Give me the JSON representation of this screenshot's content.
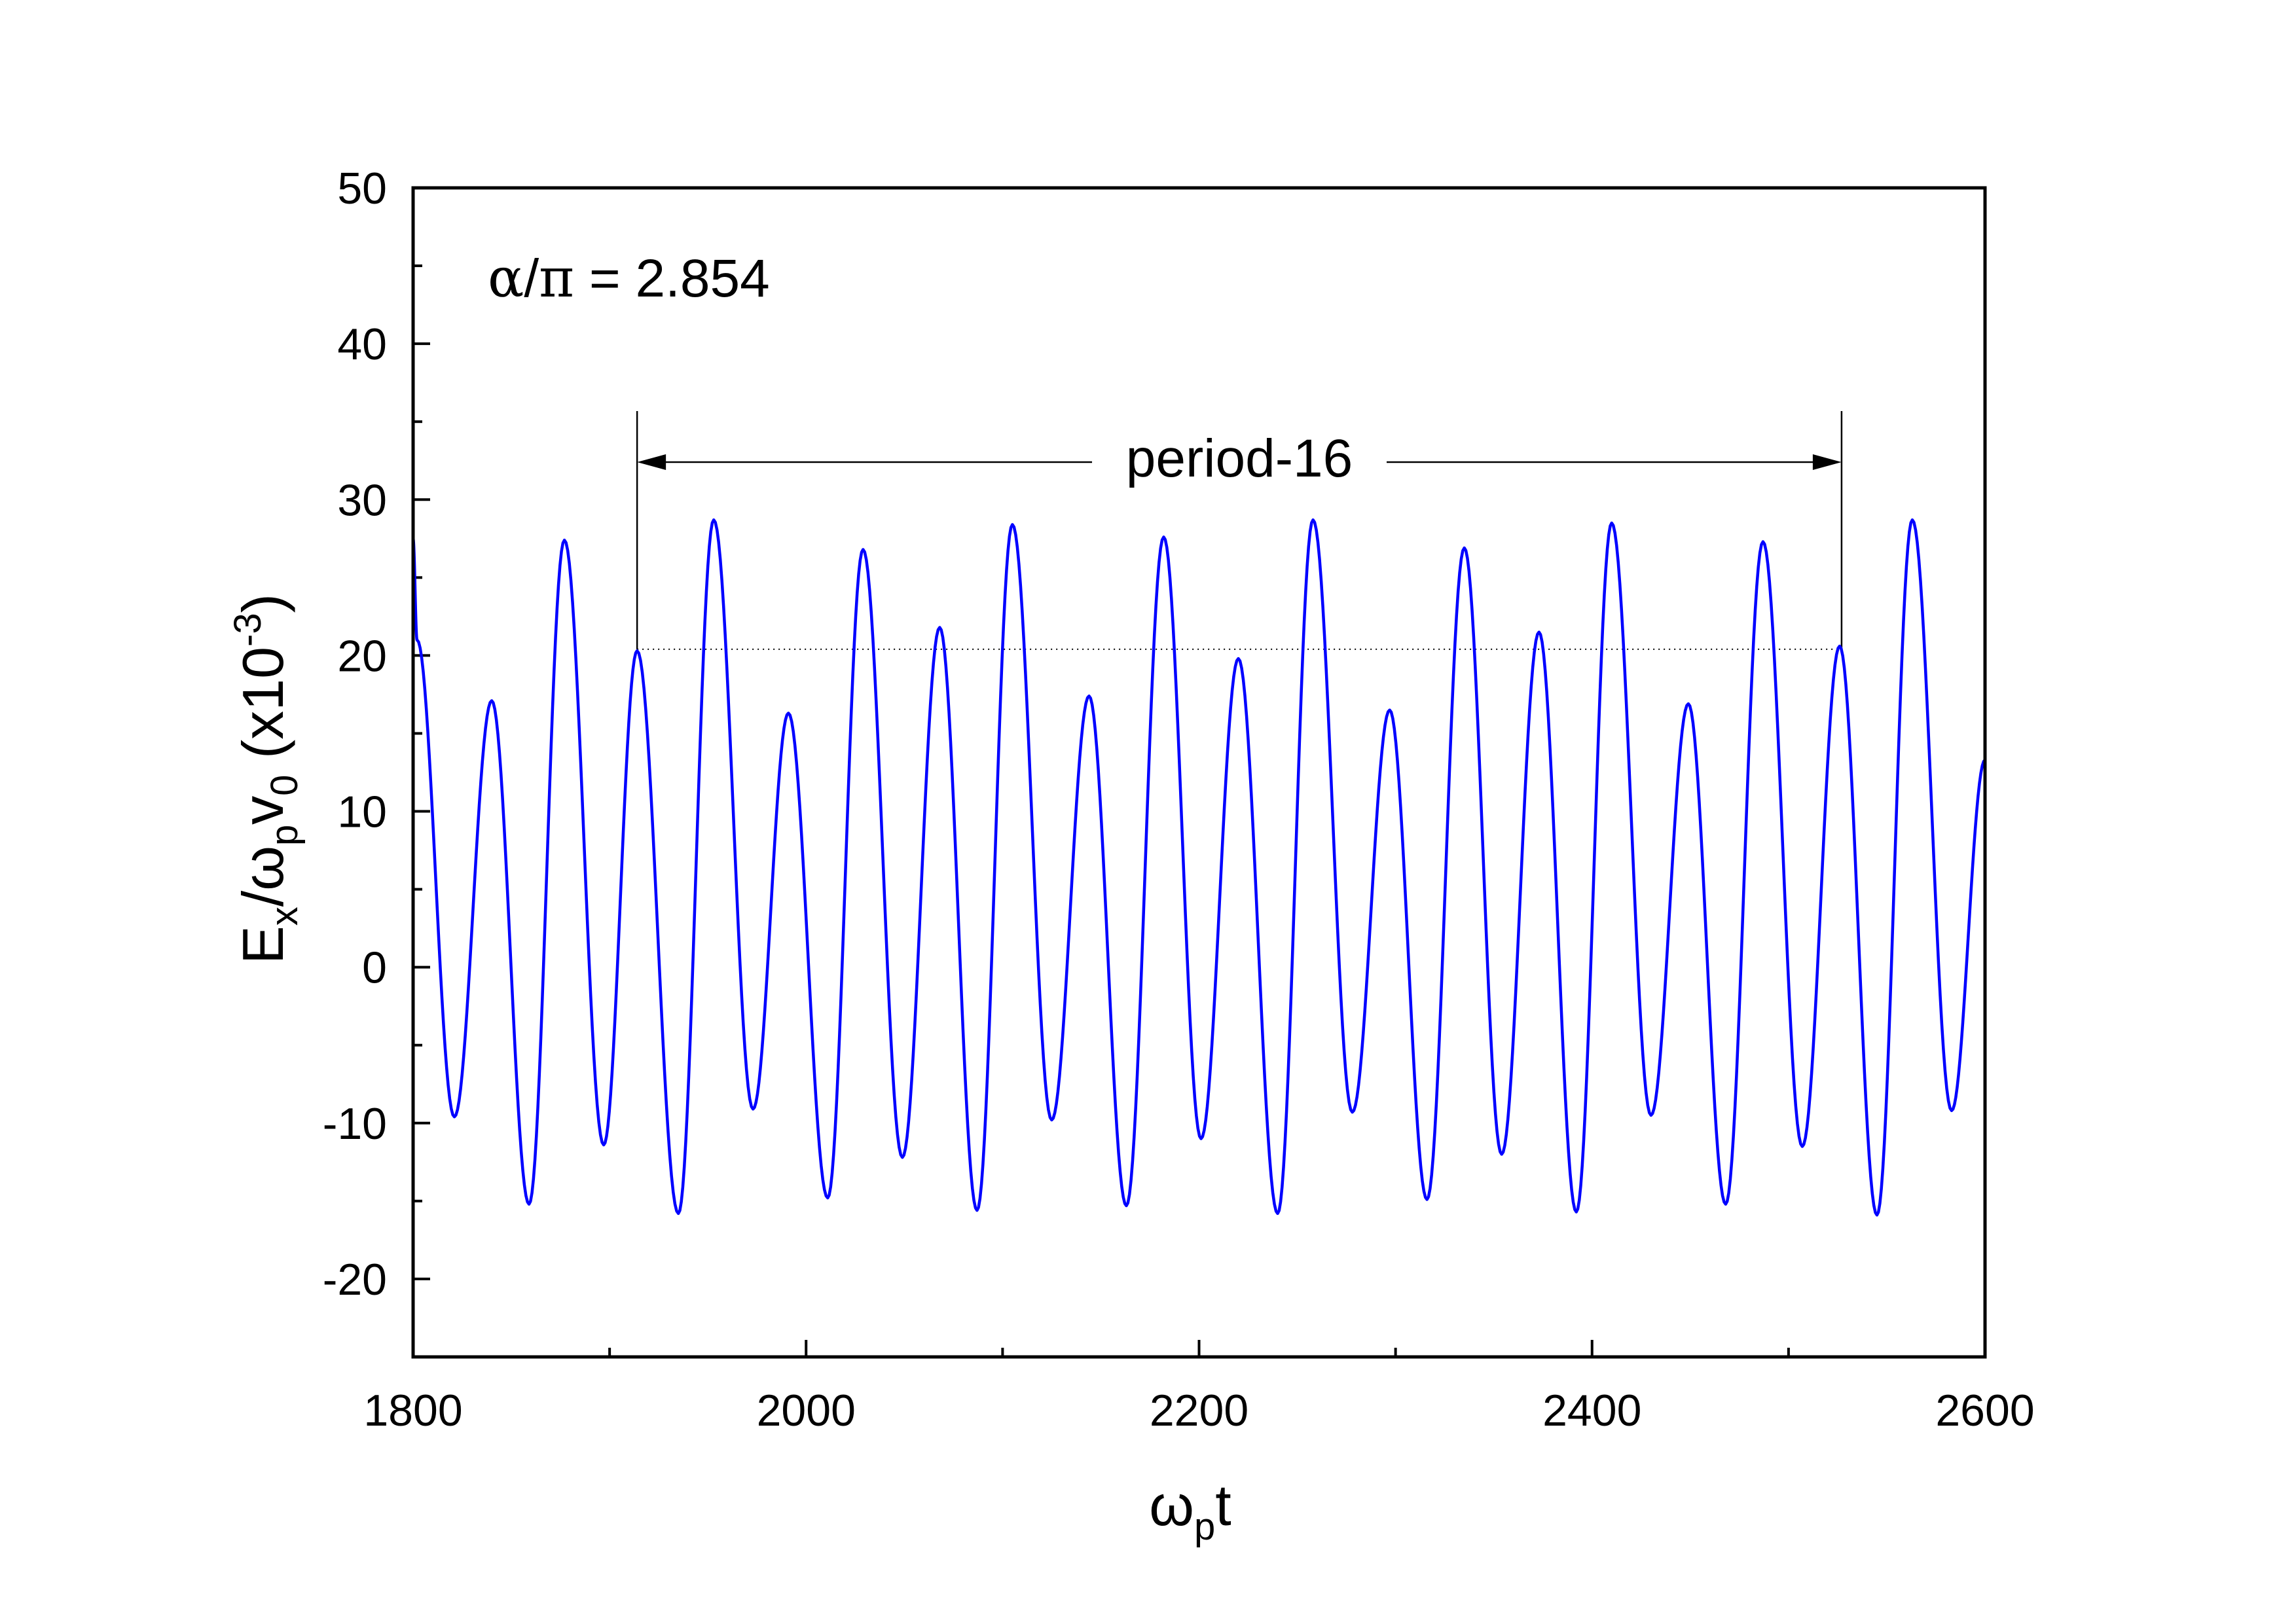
{
  "chart_data": {
    "type": "line",
    "xlabel": {
      "main": "ω",
      "sub": "p",
      "tail": "t"
    },
    "ylabel": {
      "E": "E",
      "x": "x",
      "slash_omega": "/ω",
      "p": "p",
      "v": "v",
      "zero": "0",
      "factor": " (x10",
      "exp": "-3",
      "close": ")"
    },
    "xlim": [
      1800,
      2600
    ],
    "ylim": [
      -25,
      50
    ],
    "xticks": [
      1800,
      2000,
      2200,
      2400,
      2600
    ],
    "yticks": [
      -20,
      -10,
      0,
      10,
      20,
      30,
      40,
      50
    ],
    "x_minor_step": 100,
    "y_minor_step": 5,
    "grid": false,
    "series_color": "#0000ff",
    "annotations": {
      "parameter": {
        "alpha": "α",
        "slash": "/",
        "pi": "π",
        "value": " = 2.854"
      },
      "period_label": "period-16",
      "period_start_x": 1914,
      "period_end_x": 2527,
      "reference_level_y": 20.4
    },
    "series": [
      {
        "color": "#0000ff",
        "points": [
          [
            1800,
            27.5
          ],
          [
            1802,
            21.0
          ],
          [
            1821,
            -9.6
          ],
          [
            1840,
            17.1
          ],
          [
            1859,
            -15.2
          ],
          [
            1877,
            27.4
          ],
          [
            1897,
            -11.4
          ],
          [
            1914,
            20.3
          ],
          [
            1935,
            -15.8
          ],
          [
            1953,
            28.7
          ],
          [
            1973,
            -9.1
          ],
          [
            1991,
            16.3
          ],
          [
            2011,
            -14.8
          ],
          [
            2029,
            26.8
          ],
          [
            2049,
            -12.2
          ],
          [
            2068,
            21.8
          ],
          [
            2087,
            -15.6
          ],
          [
            2105,
            28.4
          ],
          [
            2125,
            -9.8
          ],
          [
            2144,
            17.4
          ],
          [
            2163,
            -15.3
          ],
          [
            2182,
            27.6
          ],
          [
            2201,
            -11.0
          ],
          [
            2220,
            19.8
          ],
          [
            2240,
            -15.8
          ],
          [
            2258,
            28.7
          ],
          [
            2278,
            -9.3
          ],
          [
            2297,
            16.5
          ],
          [
            2316,
            -14.9
          ],
          [
            2335,
            26.9
          ],
          [
            2354,
            -12.0
          ],
          [
            2373,
            21.5
          ],
          [
            2392,
            -15.7
          ],
          [
            2410,
            28.5
          ],
          [
            2430,
            -9.5
          ],
          [
            2449,
            16.9
          ],
          [
            2468,
            -15.2
          ],
          [
            2487,
            27.3
          ],
          [
            2507,
            -11.5
          ],
          [
            2526,
            20.6
          ],
          [
            2545,
            -15.9
          ],
          [
            2563,
            28.7
          ],
          [
            2583,
            -9.2
          ],
          [
            2600,
            13.3
          ]
        ]
      }
    ]
  }
}
